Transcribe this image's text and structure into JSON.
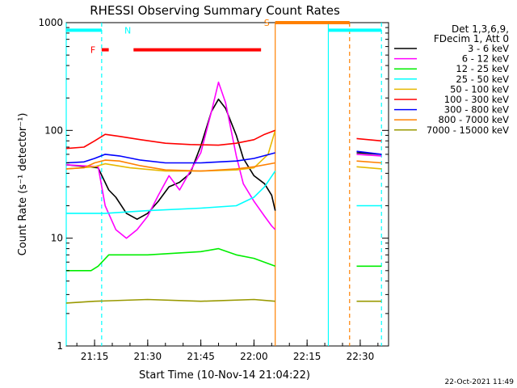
{
  "chart_data": {
    "type": "line",
    "title": "RHESSI Observing Summary Count Rates",
    "xlabel": "Start Time (10-Nov-14 21:04:22)",
    "ylabel": "Count Rate (s⁻¹ detector⁻¹)",
    "y_scale": "log",
    "ylim": [
      1,
      1000
    ],
    "xlim": [
      "21:07",
      "22:38"
    ],
    "x_ticks": [
      "21:15",
      "21:30",
      "21:45",
      "22:00",
      "22:15",
      "22:30"
    ],
    "y_ticks": [
      {
        "value": 1,
        "label": "1"
      },
      {
        "value": 10,
        "label": "10"
      },
      {
        "value": 100,
        "label": "100"
      },
      {
        "value": 1000,
        "label": "1000"
      }
    ],
    "legend_header": [
      "Det 1,3,6,9,",
      "FDecim 1, Att 0"
    ],
    "legend_position": "right",
    "grid": false,
    "series": [
      {
        "name": "3 - 6 keV",
        "color": "#000000",
        "points": [
          [
            "21:07",
            48
          ],
          [
            "21:16",
            45
          ],
          [
            "21:19",
            28
          ],
          [
            "21:21",
            24
          ],
          [
            "21:24",
            17
          ],
          [
            "21:27",
            15
          ],
          [
            "21:30",
            17
          ],
          [
            "21:33",
            22
          ],
          [
            "21:36",
            30
          ],
          [
            "21:39",
            33
          ],
          [
            "21:42",
            40
          ],
          [
            "21:45",
            72
          ],
          [
            "21:48",
            150
          ],
          [
            "21:50",
            195
          ],
          [
            "21:52",
            160
          ],
          [
            "21:55",
            90
          ],
          [
            "21:57",
            55
          ],
          [
            "22:00",
            38
          ],
          [
            "22:03",
            32
          ],
          [
            "22:05",
            25
          ],
          [
            "22:06",
            18
          ]
        ],
        "points2": [
          [
            "22:29",
            62
          ],
          [
            "22:36",
            60
          ]
        ]
      },
      {
        "name": "6 - 12 keV",
        "color": "#ff00ff",
        "points": [
          [
            "21:07",
            48
          ],
          [
            "21:16",
            46
          ],
          [
            "21:18",
            20
          ],
          [
            "21:21",
            12
          ],
          [
            "21:24",
            10
          ],
          [
            "21:27",
            12
          ],
          [
            "21:30",
            16
          ],
          [
            "21:33",
            25
          ],
          [
            "21:36",
            38
          ],
          [
            "21:39",
            28
          ],
          [
            "21:42",
            42
          ],
          [
            "21:45",
            62
          ],
          [
            "21:48",
            150
          ],
          [
            "21:50",
            280
          ],
          [
            "21:52",
            180
          ],
          [
            "21:55",
            58
          ],
          [
            "21:57",
            32
          ],
          [
            "22:00",
            22
          ],
          [
            "22:03",
            16
          ],
          [
            "22:05",
            13
          ],
          [
            "22:06",
            12
          ]
        ],
        "points2": [
          [
            "22:29",
            60
          ],
          [
            "22:36",
            58
          ]
        ]
      },
      {
        "name": "12 - 25 keV",
        "color": "#00ee00",
        "points": [
          [
            "21:07",
            5
          ],
          [
            "21:14",
            5
          ],
          [
            "21:16",
            5.5
          ],
          [
            "21:19",
            7
          ],
          [
            "21:30",
            7
          ],
          [
            "21:45",
            7.5
          ],
          [
            "21:50",
            8
          ],
          [
            "21:55",
            7
          ],
          [
            "22:00",
            6.5
          ],
          [
            "22:06",
            5.5
          ]
        ],
        "points2": [
          [
            "22:29",
            5.5
          ],
          [
            "22:36",
            5.5
          ]
        ]
      },
      {
        "name": "25 - 50 keV",
        "color": "#00ffff",
        "points": [
          [
            "21:07",
            17
          ],
          [
            "21:15",
            17
          ],
          [
            "21:18",
            17
          ],
          [
            "21:30",
            18
          ],
          [
            "21:45",
            19
          ],
          [
            "21:55",
            20
          ],
          [
            "22:00",
            24
          ],
          [
            "22:03",
            30
          ],
          [
            "22:06",
            42
          ]
        ],
        "points2": [
          [
            "22:29",
            20
          ],
          [
            "22:36",
            20
          ]
        ]
      },
      {
        "name": "50 - 100 keV",
        "color": "#e6b800",
        "points": [
          [
            "21:07",
            44
          ],
          [
            "21:15",
            46
          ],
          [
            "21:18",
            49
          ],
          [
            "21:25",
            45
          ],
          [
            "21:35",
            42
          ],
          [
            "21:45",
            42
          ],
          [
            "21:55",
            43
          ],
          [
            "22:00",
            45
          ],
          [
            "22:04",
            60
          ],
          [
            "22:06",
            100
          ]
        ],
        "points2": [
          [
            "22:29",
            46
          ],
          [
            "22:36",
            44
          ]
        ]
      },
      {
        "name": "100 - 300 keV",
        "color": "#ff0000",
        "points": [
          [
            "21:07",
            68
          ],
          [
            "21:12",
            70
          ],
          [
            "21:15",
            80
          ],
          [
            "21:18",
            92
          ],
          [
            "21:22",
            88
          ],
          [
            "21:28",
            82
          ],
          [
            "21:35",
            76
          ],
          [
            "21:42",
            74
          ],
          [
            "21:50",
            73
          ],
          [
            "21:55",
            76
          ],
          [
            "22:00",
            82
          ],
          [
            "22:03",
            92
          ],
          [
            "22:06",
            100
          ]
        ],
        "points2": [
          [
            "22:29",
            84
          ],
          [
            "22:36",
            80
          ]
        ]
      },
      {
        "name": "300 - 800 keV",
        "color": "#0000ff",
        "points": [
          [
            "21:07",
            50
          ],
          [
            "21:12",
            51
          ],
          [
            "21:15",
            55
          ],
          [
            "21:18",
            60
          ],
          [
            "21:22",
            58
          ],
          [
            "21:28",
            53
          ],
          [
            "21:35",
            50
          ],
          [
            "21:45",
            50
          ],
          [
            "21:55",
            52
          ],
          [
            "22:00",
            55
          ],
          [
            "22:06",
            62
          ]
        ],
        "points2": [
          [
            "22:29",
            64
          ],
          [
            "22:36",
            60
          ]
        ]
      },
      {
        "name": "800 - 7000 keV",
        "color": "#ff8000",
        "points": [
          [
            "21:07",
            44
          ],
          [
            "21:12",
            45
          ],
          [
            "21:15",
            50
          ],
          [
            "21:18",
            53
          ],
          [
            "21:22",
            52
          ],
          [
            "21:28",
            47
          ],
          [
            "21:35",
            43
          ],
          [
            "21:45",
            42
          ],
          [
            "21:55",
            44
          ],
          [
            "22:00",
            46
          ],
          [
            "22:06",
            50
          ]
        ],
        "points2": [
          [
            "22:29",
            52
          ],
          [
            "22:36",
            50
          ]
        ]
      },
      {
        "name": "7000 - 15000 keV",
        "color": "#999900",
        "points": [
          [
            "21:07",
            2.5
          ],
          [
            "21:15",
            2.6
          ],
          [
            "21:30",
            2.7
          ],
          [
            "21:45",
            2.6
          ],
          [
            "22:00",
            2.7
          ],
          [
            "22:06",
            2.6
          ]
        ],
        "points2": [
          [
            "22:29",
            2.6
          ],
          [
            "22:36",
            2.6
          ]
        ]
      }
    ],
    "flag_bars": [
      {
        "label": "N",
        "color": "#00ffff",
        "y": 850,
        "segments": [
          [
            "21:07",
            "21:17"
          ],
          [
            "22:21",
            "22:36"
          ]
        ]
      },
      {
        "label": "F",
        "color": "#ff0000",
        "y": 560,
        "segments": [
          [
            "21:17",
            "21:19"
          ],
          [
            "21:26",
            "22:02"
          ]
        ]
      },
      {
        "label": "S",
        "color": "#ff8000",
        "y": 1000,
        "segments": [
          [
            "22:06",
            "22:27"
          ]
        ]
      }
    ],
    "vlines": [
      {
        "x": "21:17",
        "color": "#00ffff",
        "style": "dashed"
      },
      {
        "x": "22:06",
        "color": "#ff8000",
        "style": "solid"
      },
      {
        "x": "22:27",
        "color": "#ff8000",
        "style": "dashed"
      },
      {
        "x": "22:21",
        "color": "#00ffff",
        "style": "solid"
      },
      {
        "x": "22:36",
        "color": "#00ffff",
        "style": "dashed"
      },
      {
        "x": "21:07",
        "color": "#00ffff",
        "style": "solid"
      }
    ]
  },
  "footer": {
    "timestamp": "22-Oct-2021 11:49"
  }
}
